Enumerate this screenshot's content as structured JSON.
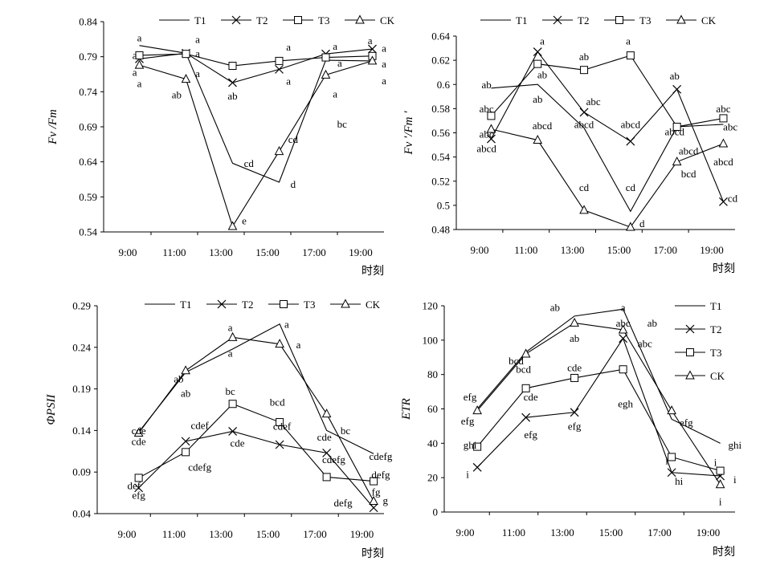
{
  "chart_data": [
    {
      "type": "line",
      "ylabel": "Fv /Fm",
      "xlabel": "时刻",
      "categories": [
        "9:00",
        "11:00",
        "13:00",
        "15:00",
        "17:00",
        "19:00"
      ],
      "yticks": [
        "0.54",
        "0.59",
        "0.64",
        "0.69",
        "0.74",
        "0.79",
        "0.84"
      ],
      "ylim": [
        0.54,
        0.84
      ],
      "legend": [
        "T1",
        "T2",
        "T3",
        "CK"
      ],
      "series": [
        {
          "name": "T1",
          "marker": "none",
          "x": [
            9.5,
            11.5,
            13.5,
            15.5,
            17.5,
            19.5
          ],
          "values": [
            0.806,
            0.795,
            0.638,
            0.611,
            0.785,
            0.784
          ]
        },
        {
          "name": "T2",
          "marker": "cross",
          "x": [
            9.5,
            11.5,
            13.5,
            15.5,
            17.5,
            19.5
          ],
          "values": [
            0.787,
            0.795,
            0.753,
            0.772,
            0.794,
            0.801
          ]
        },
        {
          "name": "T3",
          "marker": "square",
          "x": [
            9.5,
            11.5,
            13.5,
            15.5,
            17.5,
            19.5
          ],
          "values": [
            0.792,
            0.794,
            0.777,
            0.784,
            0.789,
            0.791
          ]
        },
        {
          "name": "CK",
          "marker": "triangle",
          "x": [
            9.5,
            11.5,
            13.5,
            15.5,
            17.5,
            19.5
          ],
          "values": [
            0.778,
            0.758,
            0.548,
            0.655,
            0.764,
            0.784
          ]
        }
      ],
      "annotations": [
        {
          "text": "a",
          "x": 9.5,
          "y": 0.817
        },
        {
          "text": "a",
          "x": 9.3,
          "y": 0.792
        },
        {
          "text": "a",
          "x": 9.3,
          "y": 0.768
        },
        {
          "text": "a",
          "x": 9.5,
          "y": 0.752
        },
        {
          "text": "a",
          "x": 12.0,
          "y": 0.815
        },
        {
          "text": "a",
          "x": 12.0,
          "y": 0.795
        },
        {
          "text": "a",
          "x": 12.0,
          "y": 0.766
        },
        {
          "text": "ab",
          "x": 11.1,
          "y": 0.736
        },
        {
          "text": "ab",
          "x": 13.5,
          "y": 0.734
        },
        {
          "text": "cd",
          "x": 14.2,
          "y": 0.638
        },
        {
          "text": "e",
          "x": 14.0,
          "y": 0.556
        },
        {
          "text": "a",
          "x": 15.9,
          "y": 0.804
        },
        {
          "text": "a",
          "x": 15.9,
          "y": 0.755
        },
        {
          "text": "cd",
          "x": 16.1,
          "y": 0.672
        },
        {
          "text": "d",
          "x": 16.1,
          "y": 0.608
        },
        {
          "text": "a",
          "x": 17.9,
          "y": 0.805
        },
        {
          "text": "a",
          "x": 18.1,
          "y": 0.781
        },
        {
          "text": "a",
          "x": 17.9,
          "y": 0.737
        },
        {
          "text": "bc",
          "x": 18.2,
          "y": 0.694
        },
        {
          "text": "a",
          "x": 19.4,
          "y": 0.813
        },
        {
          "text": "a",
          "x": 20.0,
          "y": 0.802
        },
        {
          "text": "a",
          "x": 20.0,
          "y": 0.78
        },
        {
          "text": "a",
          "x": 20.0,
          "y": 0.756
        }
      ]
    },
    {
      "type": "line",
      "ylabel": "Fv ′/Fm ′",
      "xlabel": "时刻",
      "categories": [
        "9:00",
        "11:00",
        "13:00",
        "15:00",
        "17:00",
        "19:00"
      ],
      "yticks": [
        "0.48",
        "0.5",
        "0.52",
        "0.54",
        "0.56",
        "0.58",
        "0.6",
        "0.62",
        "0.64"
      ],
      "ylim": [
        0.48,
        0.64
      ],
      "legend": [
        "T1",
        "T2",
        "T3",
        "CK"
      ],
      "series": [
        {
          "name": "T1",
          "marker": "none",
          "x": [
            9.5,
            11.5,
            13.5,
            15.5,
            17.5,
            19.5
          ],
          "values": [
            0.597,
            0.6,
            0.564,
            0.495,
            0.565,
            0.567
          ]
        },
        {
          "name": "T2",
          "marker": "cross",
          "x": [
            9.5,
            11.5,
            13.5,
            15.5,
            17.5,
            19.5
          ],
          "values": [
            0.555,
            0.627,
            0.577,
            0.553,
            0.596,
            0.503
          ]
        },
        {
          "name": "T3",
          "marker": "square",
          "x": [
            9.5,
            11.5,
            13.5,
            15.5,
            17.5,
            19.5
          ],
          "values": [
            0.574,
            0.617,
            0.612,
            0.624,
            0.565,
            0.572
          ]
        },
        {
          "name": "CK",
          "marker": "triangle",
          "x": [
            9.5,
            11.5,
            13.5,
            15.5,
            17.5,
            19.5
          ],
          "values": [
            0.563,
            0.554,
            0.496,
            0.482,
            0.536,
            0.551
          ]
        }
      ],
      "annotations": [
        {
          "text": "ab",
          "x": 9.3,
          "y": 0.6
        },
        {
          "text": "abc",
          "x": 9.3,
          "y": 0.58
        },
        {
          "text": "abc",
          "x": 9.3,
          "y": 0.559
        },
        {
          "text": "abcd",
          "x": 9.3,
          "y": 0.547
        },
        {
          "text": "a",
          "x": 11.7,
          "y": 0.636
        },
        {
          "text": "ab",
          "x": 11.7,
          "y": 0.608
        },
        {
          "text": "ab",
          "x": 11.5,
          "y": 0.588
        },
        {
          "text": "abcd",
          "x": 11.7,
          "y": 0.566
        },
        {
          "text": "ab",
          "x": 13.5,
          "y": 0.623
        },
        {
          "text": "abc",
          "x": 13.9,
          "y": 0.586
        },
        {
          "text": "abcd",
          "x": 13.5,
          "y": 0.567
        },
        {
          "text": "cd",
          "x": 13.5,
          "y": 0.515
        },
        {
          "text": "a",
          "x": 15.4,
          "y": 0.636
        },
        {
          "text": "abcd",
          "x": 15.5,
          "y": 0.567
        },
        {
          "text": "cd",
          "x": 15.5,
          "y": 0.515
        },
        {
          "text": "d",
          "x": 16.0,
          "y": 0.485
        },
        {
          "text": "ab",
          "x": 17.4,
          "y": 0.607
        },
        {
          "text": "abcd",
          "x": 17.4,
          "y": 0.561
        },
        {
          "text": "abcd",
          "x": 18.0,
          "y": 0.545
        },
        {
          "text": "bcd",
          "x": 18.0,
          "y": 0.526
        },
        {
          "text": "abc",
          "x": 19.5,
          "y": 0.58
        },
        {
          "text": "abc",
          "x": 19.8,
          "y": 0.565
        },
        {
          "text": "abcd",
          "x": 19.5,
          "y": 0.536
        },
        {
          "text": "cd",
          "x": 19.9,
          "y": 0.506
        }
      ]
    },
    {
      "type": "line",
      "ylabel": "ΦPSII",
      "xlabel": "时刻",
      "categories": [
        "9:00",
        "11:00",
        "13:00",
        "15:00",
        "17:00",
        "19:00"
      ],
      "yticks": [
        "0.04",
        "0.09",
        "0.14",
        "0.19",
        "0.24",
        "0.29"
      ],
      "ylim": [
        0.04,
        0.29
      ],
      "legend": [
        "T1",
        "T2",
        "T3",
        "CK"
      ],
      "series": [
        {
          "name": "T1",
          "marker": "none",
          "x": [
            9.5,
            11.5,
            13.5,
            15.5,
            17.5,
            19.5
          ],
          "values": [
            0.138,
            0.21,
            0.238,
            0.268,
            0.14,
            0.112
          ]
        },
        {
          "name": "T2",
          "marker": "cross",
          "x": [
            9.5,
            11.5,
            13.5,
            15.5,
            17.5,
            19.5
          ],
          "values": [
            0.071,
            0.127,
            0.139,
            0.123,
            0.113,
            0.047
          ]
        },
        {
          "name": "T3",
          "marker": "square",
          "x": [
            9.5,
            11.5,
            13.5,
            15.5,
            17.5,
            19.5
          ],
          "values": [
            0.083,
            0.114,
            0.172,
            0.15,
            0.084,
            0.079
          ]
        },
        {
          "name": "CK",
          "marker": "triangle",
          "x": [
            9.5,
            11.5,
            13.5,
            15.5,
            17.5,
            19.5
          ],
          "values": [
            0.137,
            0.212,
            0.252,
            0.244,
            0.16,
            0.055
          ]
        }
      ],
      "annotations": [
        {
          "text": "cde",
          "x": 9.5,
          "y": 0.14
        },
        {
          "text": "cde",
          "x": 9.5,
          "y": 0.127
        },
        {
          "text": "def",
          "x": 9.3,
          "y": 0.074
        },
        {
          "text": "efg",
          "x": 9.5,
          "y": 0.062
        },
        {
          "text": "ab",
          "x": 11.2,
          "y": 0.202
        },
        {
          "text": "ab",
          "x": 11.5,
          "y": 0.185
        },
        {
          "text": "cdef",
          "x": 12.1,
          "y": 0.146
        },
        {
          "text": "cdefg",
          "x": 12.1,
          "y": 0.096
        },
        {
          "text": "a",
          "x": 13.4,
          "y": 0.264
        },
        {
          "text": "a",
          "x": 13.4,
          "y": 0.233
        },
        {
          "text": "bc",
          "x": 13.4,
          "y": 0.187
        },
        {
          "text": "cde",
          "x": 13.7,
          "y": 0.125
        },
        {
          "text": "a",
          "x": 15.8,
          "y": 0.268
        },
        {
          "text": "a",
          "x": 16.3,
          "y": 0.243
        },
        {
          "text": "bcd",
          "x": 15.4,
          "y": 0.174
        },
        {
          "text": "cdef",
          "x": 15.6,
          "y": 0.145
        },
        {
          "text": "bc",
          "x": 18.3,
          "y": 0.14
        },
        {
          "text": "cde",
          "x": 17.4,
          "y": 0.132
        },
        {
          "text": "cdefg",
          "x": 17.8,
          "y": 0.105
        },
        {
          "text": "defg",
          "x": 18.2,
          "y": 0.053
        },
        {
          "text": "cdefg",
          "x": 19.8,
          "y": 0.109
        },
        {
          "text": "defg",
          "x": 19.8,
          "y": 0.087
        },
        {
          "text": "fg",
          "x": 19.6,
          "y": 0.066
        },
        {
          "text": "g",
          "x": 20.0,
          "y": 0.056
        }
      ]
    },
    {
      "type": "line",
      "ylabel": "ETR",
      "xlabel": "时刻",
      "categories": [
        "9:00",
        "11:00",
        "13:00",
        "15:00",
        "17:00",
        "19:00"
      ],
      "yticks": [
        "0",
        "20",
        "40",
        "60",
        "80",
        "100",
        "120"
      ],
      "ylim": [
        0,
        120
      ],
      "legend": [
        "T1",
        "T2",
        "T3",
        "CK"
      ],
      "series": [
        {
          "name": "T1",
          "marker": "none",
          "x": [
            9.5,
            11.5,
            13.5,
            15.5,
            17.5,
            19.5
          ],
          "values": [
            60,
            93,
            114,
            118,
            54,
            40
          ]
        },
        {
          "name": "T2",
          "marker": "cross",
          "x": [
            9.5,
            11.5,
            13.5,
            15.5,
            17.5,
            19.5
          ],
          "values": [
            26,
            55,
            58,
            101,
            23,
            21
          ]
        },
        {
          "name": "T3",
          "marker": "square",
          "x": [
            9.5,
            11.5,
            13.5,
            15.5,
            17.5,
            19.5
          ],
          "values": [
            38,
            72,
            78,
            83,
            32,
            24
          ]
        },
        {
          "name": "CK",
          "marker": "triangle",
          "x": [
            9.5,
            11.5,
            13.5,
            15.5,
            17.5,
            19.5
          ],
          "values": [
            59,
            92,
            110,
            106,
            59,
            16
          ]
        }
      ],
      "annotations": [
        {
          "text": "efg",
          "x": 9.2,
          "y": 67
        },
        {
          "text": "efg",
          "x": 9.1,
          "y": 53
        },
        {
          "text": "ghi",
          "x": 9.2,
          "y": 39
        },
        {
          "text": "i",
          "x": 9.1,
          "y": 22
        },
        {
          "text": "bcd",
          "x": 11.1,
          "y": 88
        },
        {
          "text": "bcd",
          "x": 11.4,
          "y": 83
        },
        {
          "text": "cde",
          "x": 11.7,
          "y": 67
        },
        {
          "text": "efg",
          "x": 11.7,
          "y": 45
        },
        {
          "text": "ab",
          "x": 12.7,
          "y": 119
        },
        {
          "text": "ab",
          "x": 13.5,
          "y": 101
        },
        {
          "text": "cde",
          "x": 13.5,
          "y": 84
        },
        {
          "text": "efg",
          "x": 13.5,
          "y": 50
        },
        {
          "text": "a",
          "x": 15.5,
          "y": 119
        },
        {
          "text": "abc",
          "x": 15.5,
          "y": 110
        },
        {
          "text": "abc",
          "x": 16.4,
          "y": 98
        },
        {
          "text": "egh",
          "x": 15.6,
          "y": 63
        },
        {
          "text": "ab",
          "x": 16.7,
          "y": 110
        },
        {
          "text": "efg",
          "x": 18.1,
          "y": 52
        },
        {
          "text": "i",
          "x": 17.3,
          "y": 30
        },
        {
          "text": "hi",
          "x": 17.8,
          "y": 18
        },
        {
          "text": "ghi",
          "x": 20.1,
          "y": 39
        },
        {
          "text": "i",
          "x": 19.3,
          "y": 29
        },
        {
          "text": "i",
          "x": 20.1,
          "y": 19
        },
        {
          "text": "i",
          "x": 19.5,
          "y": 6
        }
      ]
    }
  ]
}
